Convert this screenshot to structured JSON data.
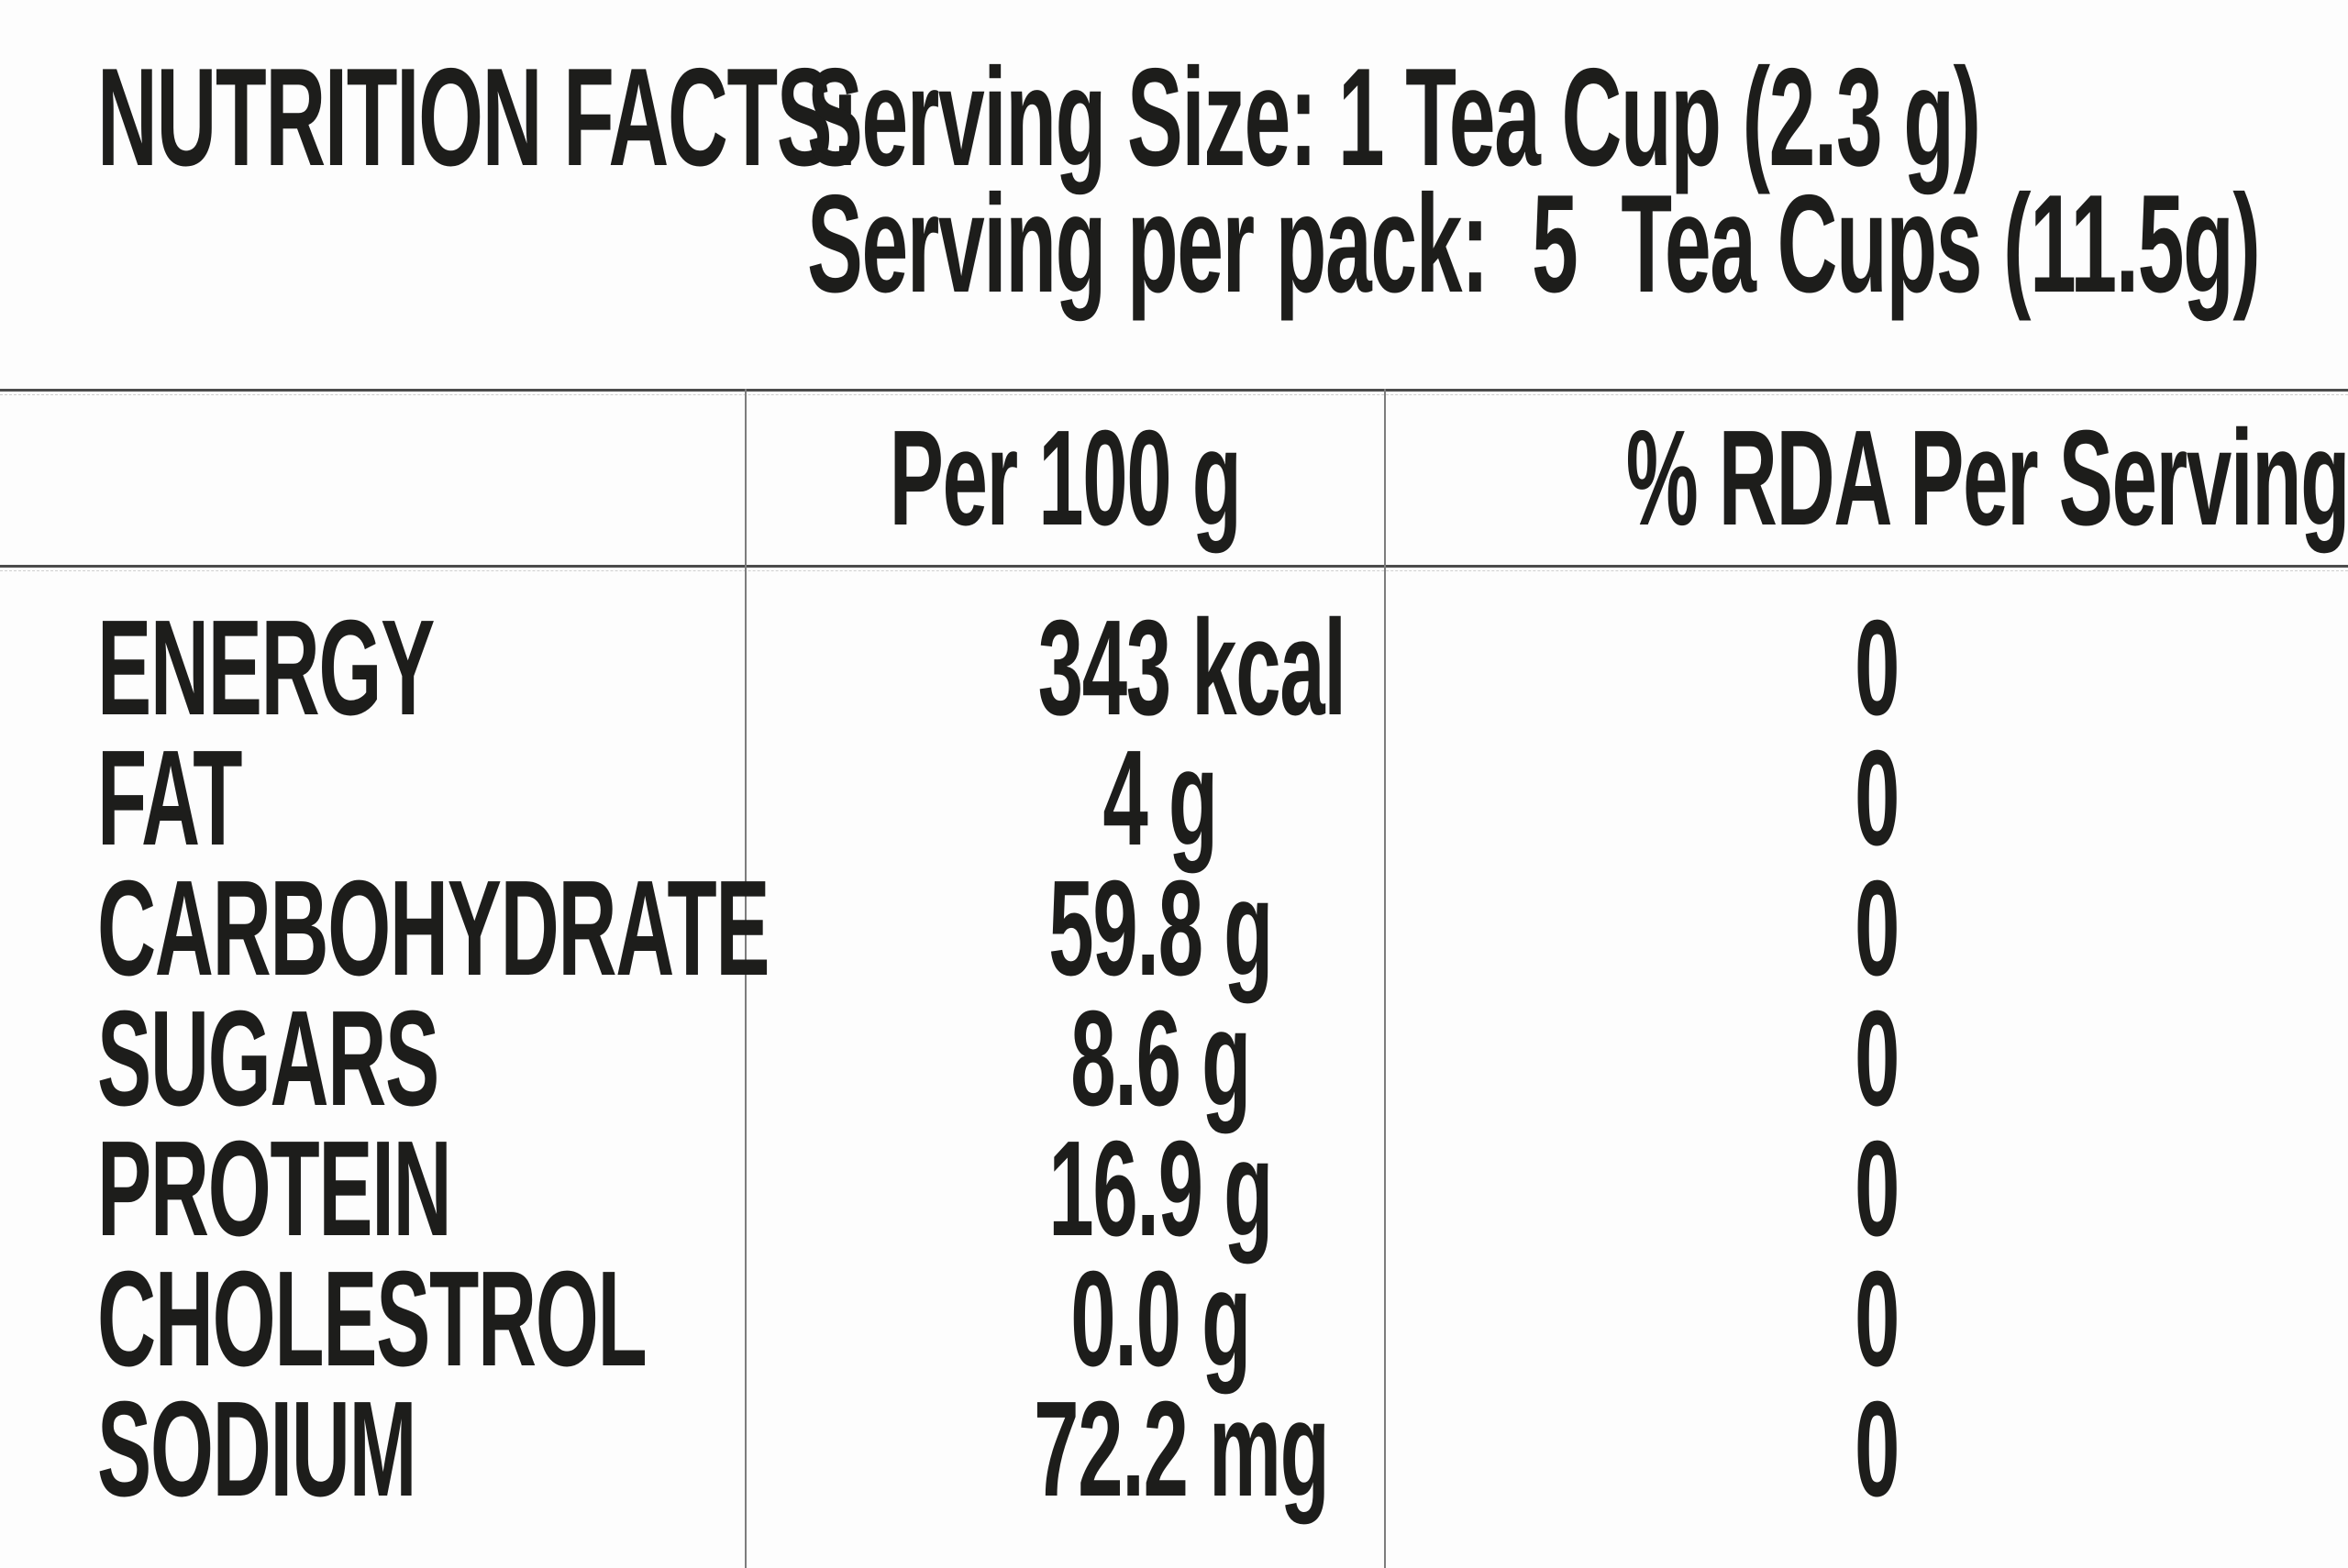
{
  "header": {
    "title": "NUTRITION FACTS:",
    "serving_size": "Serving Size: 1 Tea Cup (2.3 g)",
    "serving_per_pack": "Serving per pack:  5  Tea Cups (11.5g)"
  },
  "table": {
    "columns": [
      "",
      "Per 100 g",
      "% RDA Per Serving"
    ],
    "rows": [
      {
        "nutrient": "ENERGY",
        "per_100g": "343 kcal",
        "rda_per_serving": "0"
      },
      {
        "nutrient": "FAT",
        "per_100g": "4 g",
        "rda_per_serving": "0"
      },
      {
        "nutrient": "CARBOHYDRATE",
        "per_100g": "59.8 g",
        "rda_per_serving": "0"
      },
      {
        "nutrient": "SUGARS",
        "per_100g": "8.6 g",
        "rda_per_serving": "0"
      },
      {
        "nutrient": "PROTEIN",
        "per_100g": "16.9 g",
        "rda_per_serving": "0"
      },
      {
        "nutrient": "CHOLESTROL",
        "per_100g": "0.0 g",
        "rda_per_serving": "0"
      },
      {
        "nutrient": "SODIUM",
        "per_100g": "72.2 mg",
        "rda_per_serving": "0"
      }
    ]
  },
  "colors": {
    "text": "#1d1d1b",
    "rule_dark": "#4c4c4c",
    "rule_gray": "#7d7d7d",
    "background": "#fdfdfd"
  }
}
